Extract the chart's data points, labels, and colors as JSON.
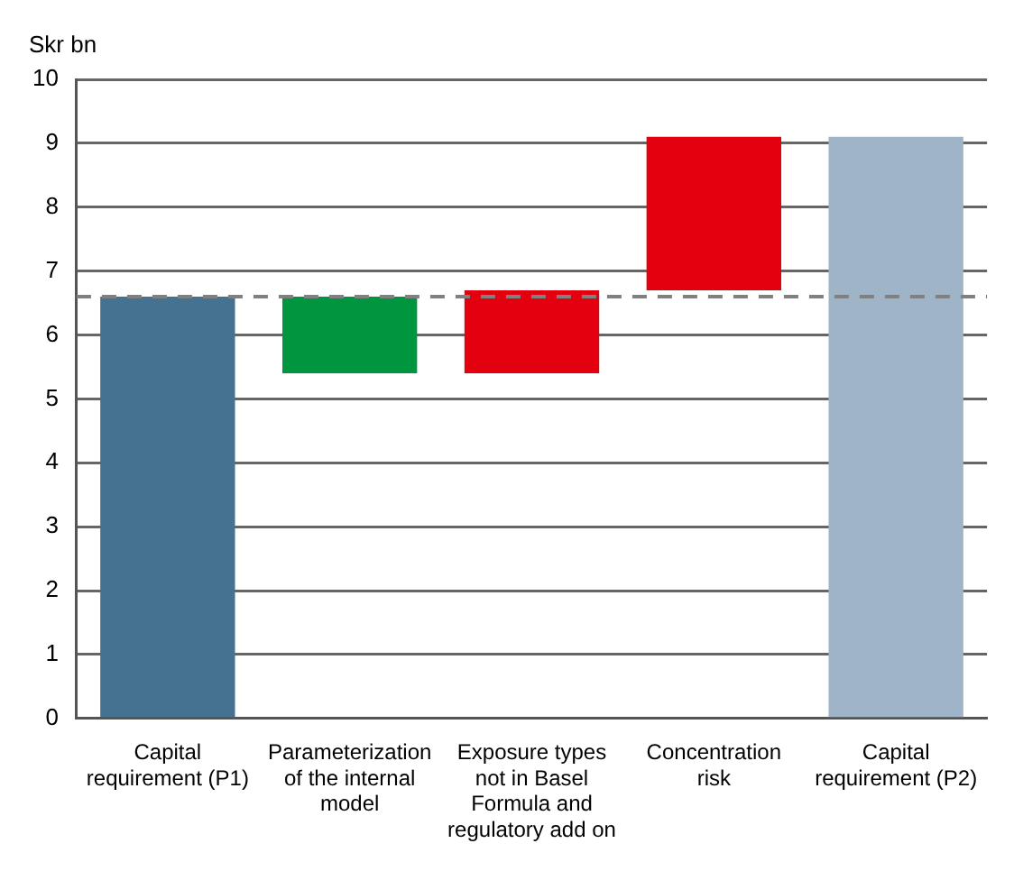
{
  "chart_data": {
    "type": "bar",
    "ylabel": "Skr bn",
    "categories": [
      "Capital requirement (P1)",
      "Parameterization of the internal model",
      "Exposure types not in Basel Formula and regulatory add on",
      "Concentration risk",
      "Capital requirement (P2)"
    ],
    "values": [
      6.6,
      1.2,
      1.3,
      2.4,
      9.1
    ],
    "base": [
      0,
      5.4,
      5.4,
      6.7,
      0
    ],
    "colors": [
      "#467291",
      "#009640",
      "#e3000f",
      "#e3000f",
      "#a0b4c8"
    ],
    "ylim": [
      0,
      10
    ],
    "yticks": [
      0,
      1,
      2,
      3,
      4,
      5,
      6,
      7,
      8,
      9,
      10
    ],
    "grid": "y",
    "ref_lines": [
      {
        "axis": "y",
        "value": 6.6,
        "color": "#808080",
        "line_style": "dashed"
      }
    ]
  }
}
